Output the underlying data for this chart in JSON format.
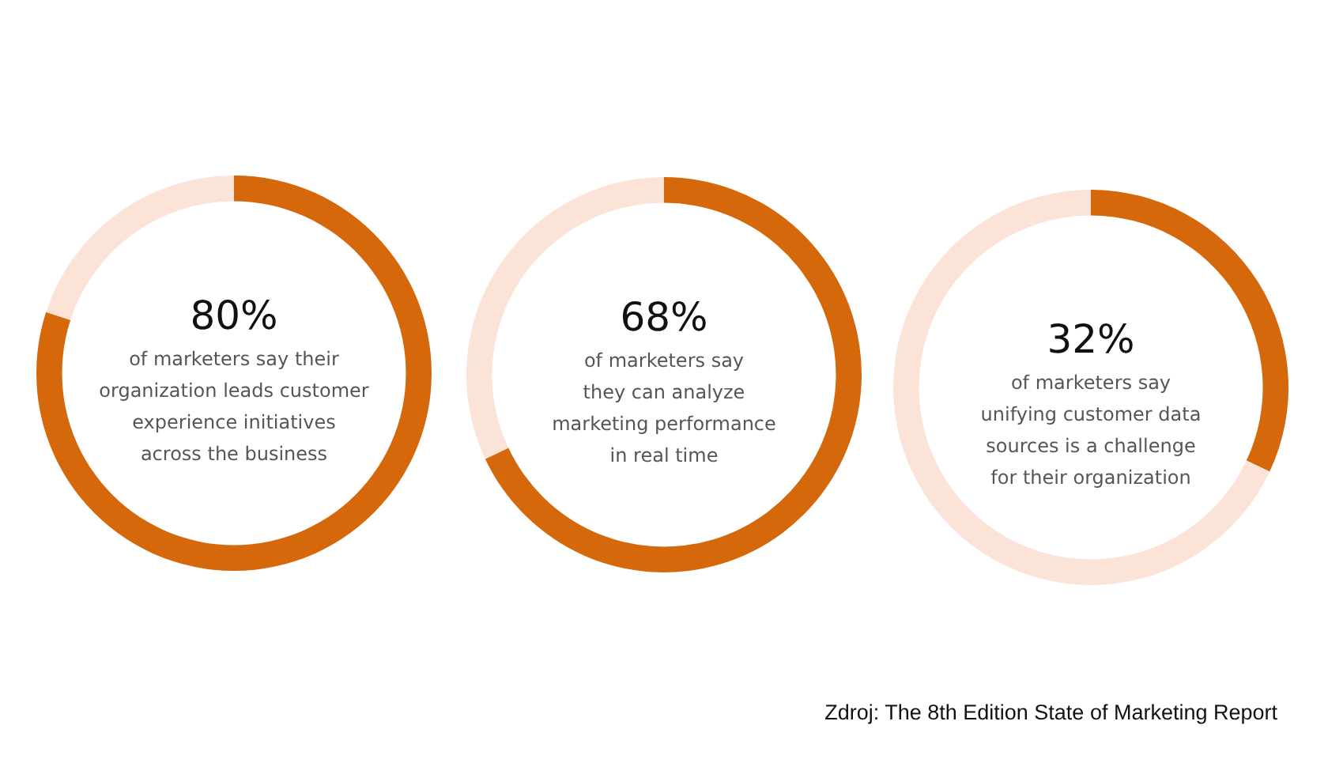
{
  "chart_data": [
    {
      "type": "donut",
      "categories": [
        null,
        null
      ],
      "values": [
        80,
        20
      ],
      "colors": [
        "#d4680b",
        "#fbe3d8"
      ],
      "value_labels": [
        "80%",
        null
      ],
      "annotations": [
        "of marketers say their\norganization leads customer\nexperience initiatives\nacross the business"
      ]
    },
    {
      "type": "donut",
      "categories": [
        null,
        null
      ],
      "values": [
        68,
        32
      ],
      "colors": [
        "#d4680b",
        "#fbe3d8"
      ],
      "value_labels": [
        "68%",
        null
      ],
      "annotations": [
        "of marketers say\nthey can analyze\nmarketing performance\nin real time"
      ]
    },
    {
      "type": "donut",
      "categories": [
        null,
        null
      ],
      "values": [
        32,
        68
      ],
      "colors": [
        "#d4680b",
        "#fbe3d8"
      ],
      "value_labels": [
        "32%",
        null
      ],
      "annotations": [
        "of marketers say\nunifying customer data\nsources is a challenge\nfor their organization",
        "Zdroj: The 8th Edition State of Marketing Report"
      ]
    }
  ]
}
